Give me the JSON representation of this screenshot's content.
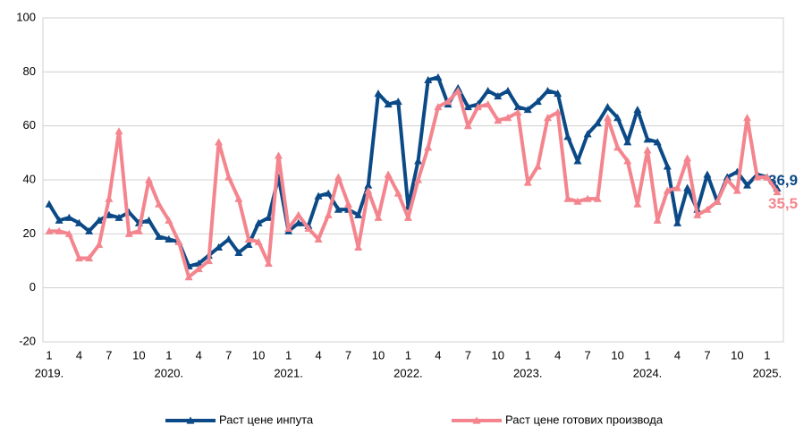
{
  "chart_data": {
    "type": "line",
    "categories": [
      "1",
      null,
      null,
      "4",
      null,
      null,
      "7",
      null,
      null,
      "10",
      null,
      null,
      "1",
      null,
      null,
      "4",
      null,
      null,
      "7",
      null,
      null,
      "10",
      null,
      null,
      "1",
      null,
      null,
      "4",
      null,
      null,
      "7",
      null,
      null,
      "10",
      null,
      null,
      "1",
      null,
      null,
      "4",
      null,
      null,
      "7",
      null,
      null,
      "10",
      null,
      null,
      "1",
      null,
      null,
      "4",
      null,
      null,
      "7",
      null,
      null,
      "10",
      null,
      null,
      "1",
      null,
      null,
      "4",
      null,
      null,
      "7",
      null,
      null,
      "10",
      null,
      null,
      "1",
      null
    ],
    "year_labels": [
      "2019.",
      null,
      null,
      null,
      null,
      null,
      null,
      null,
      null,
      null,
      null,
      null,
      "2020.",
      null,
      null,
      null,
      null,
      null,
      null,
      null,
      null,
      null,
      null,
      null,
      "2021.",
      null,
      null,
      null,
      null,
      null,
      null,
      null,
      null,
      null,
      null,
      null,
      "2022.",
      null,
      null,
      null,
      null,
      null,
      null,
      null,
      null,
      null,
      null,
      null,
      "2023.",
      null,
      null,
      null,
      null,
      null,
      null,
      null,
      null,
      null,
      null,
      null,
      "2024.",
      null,
      null,
      null,
      null,
      null,
      null,
      null,
      null,
      null,
      null,
      null,
      "2025.",
      null
    ],
    "series": [
      {
        "name": "Раст цене инпута",
        "color": "#0b4a86",
        "values": [
          31,
          25,
          26,
          24,
          21,
          25,
          27,
          26,
          28,
          24,
          25,
          19,
          18,
          17,
          8,
          9,
          12,
          15,
          18,
          13,
          16,
          24,
          26,
          41,
          21,
          24,
          23,
          34,
          35,
          29,
          29,
          27,
          38,
          72,
          68,
          69,
          30,
          47,
          77,
          78,
          68,
          74,
          67,
          68,
          73,
          71,
          73,
          67,
          66,
          69,
          73,
          72,
          56,
          47,
          57,
          61,
          67,
          63,
          54,
          66,
          55,
          54,
          45,
          24,
          37,
          29,
          42,
          32,
          41,
          43,
          38,
          42,
          41,
          36.9
        ],
        "value_labels": [
          null,
          null,
          null,
          null,
          null,
          null,
          null,
          null,
          null,
          null,
          null,
          null,
          null,
          null,
          null,
          null,
          null,
          null,
          null,
          null,
          null,
          null,
          null,
          null,
          null,
          null,
          null,
          null,
          null,
          null,
          null,
          null,
          null,
          null,
          null,
          null,
          null,
          null,
          null,
          null,
          null,
          null,
          null,
          null,
          null,
          null,
          null,
          null,
          null,
          null,
          null,
          null,
          null,
          null,
          null,
          null,
          null,
          null,
          null,
          null,
          null,
          null,
          null,
          null,
          null,
          null,
          null,
          null,
          null,
          null,
          null,
          null,
          null,
          "36,9"
        ]
      },
      {
        "name": "Раст цене готових производа",
        "color": "#f4858e",
        "values": [
          21,
          21,
          20,
          11,
          11,
          16,
          33,
          58,
          20,
          21,
          40,
          31,
          25,
          17,
          4,
          7,
          10,
          54,
          41,
          33,
          18,
          17,
          9,
          49,
          22,
          27,
          22,
          18,
          27,
          41,
          31,
          15,
          36,
          26,
          42,
          35,
          26,
          40,
          52,
          67,
          69,
          73,
          60,
          67,
          68,
          62,
          63,
          65,
          39,
          45,
          63,
          65,
          33,
          32,
          33,
          33,
          63,
          52,
          47,
          31,
          51,
          25,
          36,
          37,
          48,
          27,
          29,
          32,
          40,
          36,
          63,
          41,
          41,
          35.5
        ],
        "value_labels": [
          null,
          null,
          null,
          null,
          null,
          null,
          null,
          null,
          null,
          null,
          null,
          null,
          null,
          null,
          null,
          null,
          null,
          null,
          null,
          null,
          null,
          null,
          null,
          null,
          null,
          null,
          null,
          null,
          null,
          null,
          null,
          null,
          null,
          null,
          null,
          null,
          null,
          null,
          null,
          null,
          null,
          null,
          null,
          null,
          null,
          null,
          null,
          null,
          null,
          null,
          null,
          null,
          null,
          null,
          null,
          null,
          null,
          null,
          null,
          null,
          null,
          null,
          null,
          null,
          null,
          null,
          null,
          null,
          null,
          null,
          null,
          null,
          null,
          "35,5"
        ]
      }
    ],
    "ylim": [
      -20,
      100
    ],
    "yticks": [
      -20,
      0,
      20,
      40,
      60,
      80,
      100
    ],
    "grid": true,
    "legend": "bottom"
  }
}
